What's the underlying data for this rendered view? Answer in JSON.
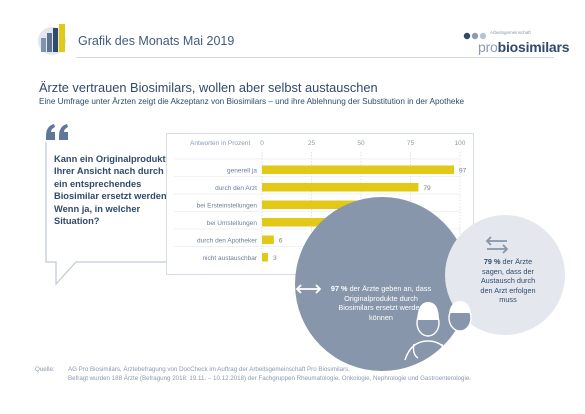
{
  "header": {
    "month_title": "Grafik des Monats Mai 2019",
    "org_sub": "Arbeitsgemeinschaft",
    "org_name_pro": "pro",
    "org_name_bio": "biosimilars"
  },
  "headline": "Ärzte vertrauen Biosimilars, wollen aber selbst austauschen",
  "subline": "Eine Umfrage unter Ärzten zeigt die Akzeptanz von Biosimilars – und ihre Ablehnung der Substitution in der Apotheke",
  "question": "Kann ein Originalprodukt Ihrer Ansicht nach durch ein entsprechendes Biosimilar ersetzt werden? Wenn ja, in welcher Situation?",
  "chart_data": {
    "type": "bar",
    "orientation": "horizontal",
    "axis_title": "Antworten in Prozent",
    "xlim": [
      0,
      100
    ],
    "ticks": [
      0,
      25,
      50,
      75,
      100
    ],
    "categories": [
      "generell ja",
      "durch den Arzt",
      "bei Ersteinstellungen",
      "bei Umstellungen",
      "durch den Apotheker",
      "nicht austauschbar"
    ],
    "values": [
      97,
      79,
      53,
      37,
      6,
      3
    ],
    "bar_color": "#e2c817"
  },
  "callouts": {
    "main_pct": "97 %",
    "main_text": "der Ärzte geben an, dass Originalprodukte durch Biosimilars ersetzt werden können",
    "right_pct": "79 %",
    "right_text": "der Ärzte sagen, dass der Austausch durch den Arzt erfolgen muss"
  },
  "source": {
    "label": "Quelle:",
    "line1": "AG Pro Biosimilars, Ärztebefragung von DocCheck im Auftrag der Arbeitsgemeinschaft Pro Biosimilars.",
    "line2": "Befragt wurden 188 Ärzte (Befragung 2018: 19.11. – 10.12.2018) der Fachgruppen Rheumatologie, Onkologie, Nephrologie und Gastroenterologie."
  },
  "colors": {
    "navy": "#2f4a6d",
    "bar": "#e2c817",
    "circle_main": "#8796ab",
    "circle_right": "#e4e8ee"
  }
}
